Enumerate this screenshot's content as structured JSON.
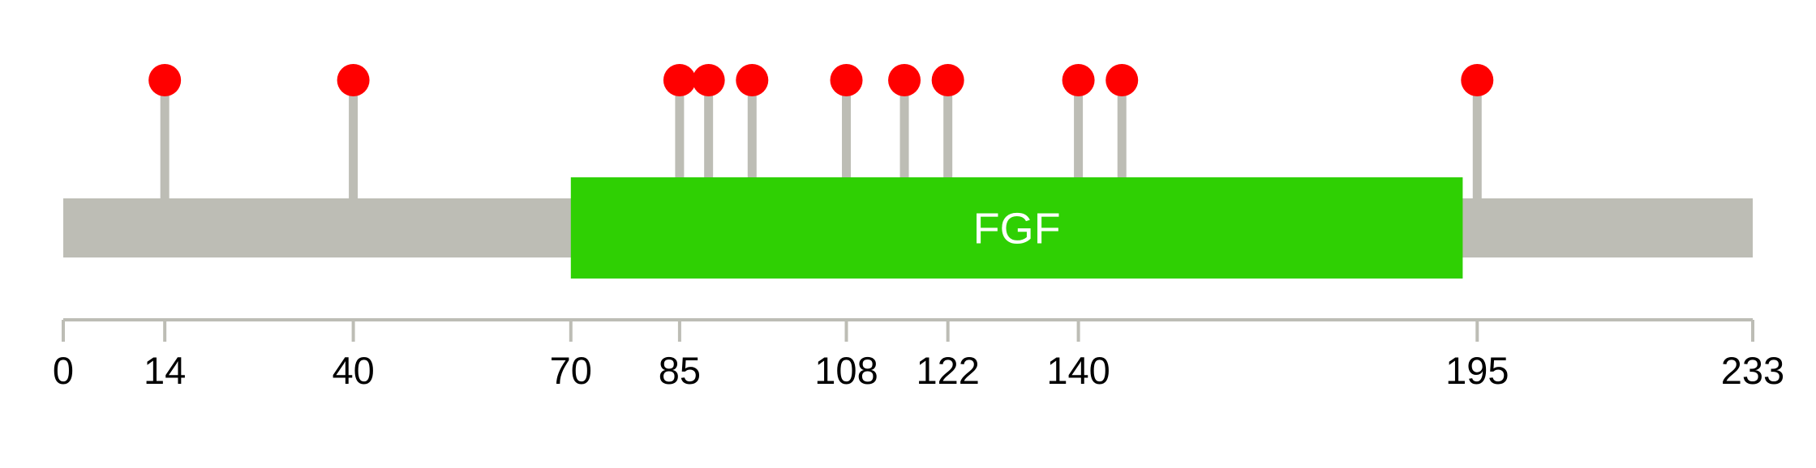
{
  "protein": {
    "length": 233,
    "backbone_color": "#bdbdb5"
  },
  "domains": [
    {
      "name": "FGF",
      "start": 70,
      "end": 193,
      "color": "#2fd003"
    }
  ],
  "sites": [
    {
      "position": 14
    },
    {
      "position": 40
    },
    {
      "position": 85
    },
    {
      "position": 89
    },
    {
      "position": 95
    },
    {
      "position": 108
    },
    {
      "position": 116
    },
    {
      "position": 122
    },
    {
      "position": 140
    },
    {
      "position": 146
    },
    {
      "position": 195
    }
  ],
  "site_color": "#ff0000",
  "stem_color": "#bdbdb5",
  "axis": {
    "color": "#bdbdb5",
    "ticks": [
      {
        "value": 0,
        "label": "0"
      },
      {
        "value": 14,
        "label": "14"
      },
      {
        "value": 40,
        "label": "40"
      },
      {
        "value": 70,
        "label": "70"
      },
      {
        "value": 85,
        "label": "85"
      },
      {
        "value": 108,
        "label": "108"
      },
      {
        "value": 122,
        "label": "122"
      },
      {
        "value": 140,
        "label": "140"
      },
      {
        "value": 195,
        "label": "195"
      },
      {
        "value": 233,
        "label": "233"
      }
    ]
  }
}
